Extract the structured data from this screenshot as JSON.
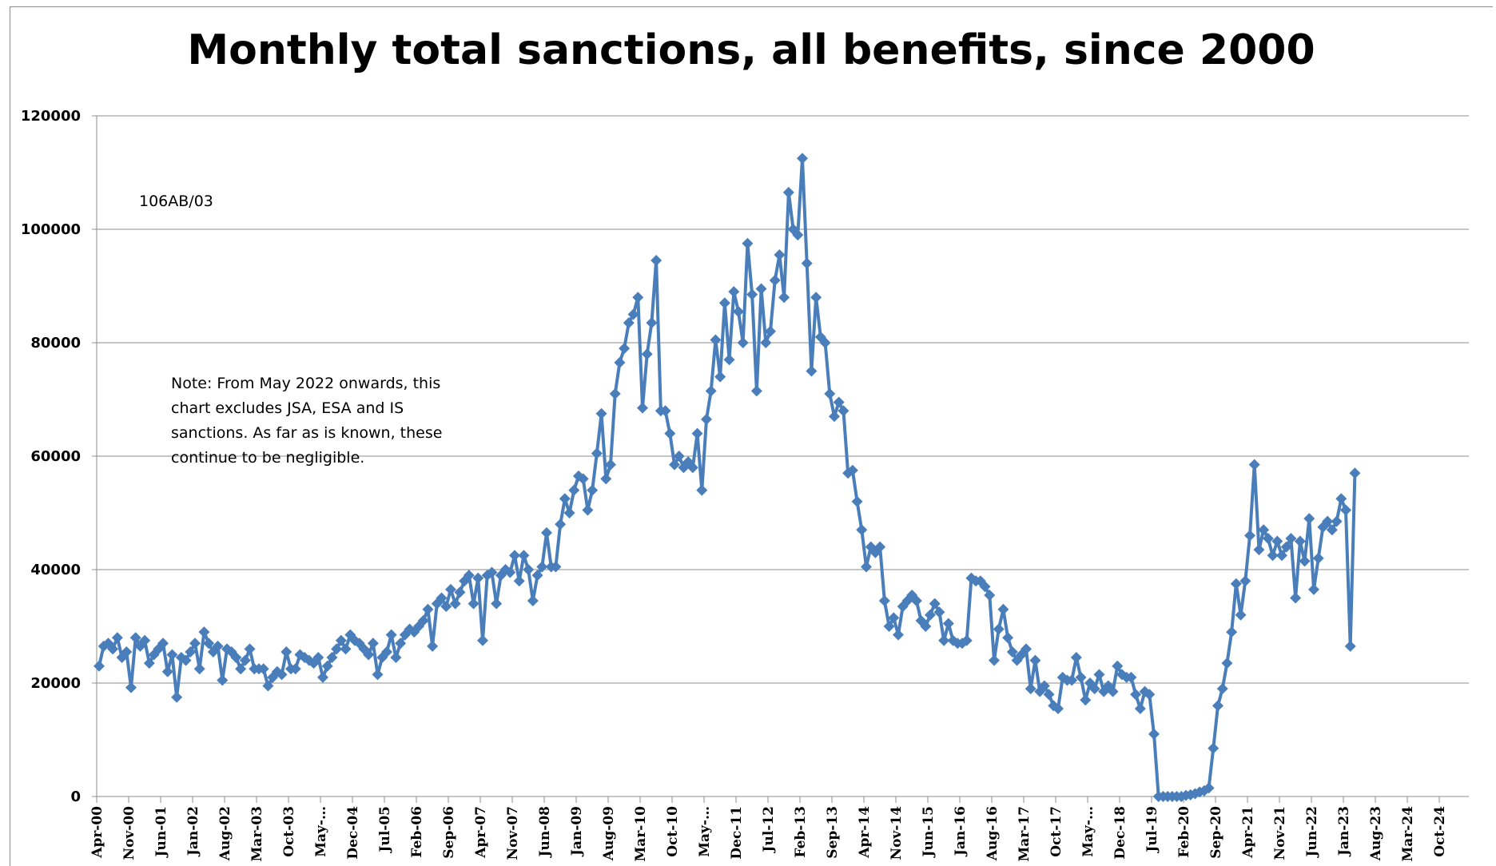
{
  "chart_data": {
    "type": "line",
    "title": "Monthly total sanctions, all benefits, since 2000",
    "xlabel": "",
    "ylabel": "",
    "ylim": [
      0,
      120000
    ],
    "yticks": [
      "0",
      "20000",
      "40000",
      "60000",
      "80000",
      "100000",
      "120000"
    ],
    "xticks": [
      "Apr-00",
      "Nov-00",
      "Jun-01",
      "Jan-02",
      "Aug-02",
      "Mar-03",
      "Oct-03",
      "May-…",
      "Dec-04",
      "Jul-05",
      "Feb-06",
      "Sep-06",
      "Apr-07",
      "Nov-07",
      "Jun-08",
      "Jan-09",
      "Aug-09",
      "Mar-10",
      "Oct-10",
      "May-…",
      "Dec-11",
      "Jul-12",
      "Feb-13",
      "Sep-13",
      "Apr-14",
      "Nov-14",
      "Jun-15",
      "Jan-16",
      "Aug-16",
      "Mar-17",
      "Oct-17",
      "May-…",
      "Dec-18",
      "Jul-19",
      "Feb-20",
      "Sep-20",
      "Apr-21",
      "Nov-21",
      "Jun-22",
      "Jan-23",
      "Aug-23",
      "Mar-24",
      "Oct-24"
    ],
    "x_start": "Apr-00",
    "x_interval": "monthly",
    "grid": true,
    "legend": "none",
    "series_color": "#4a7ebb",
    "annotations": {
      "code": "106AB/03",
      "note_lines": [
        "Note: From May 2022 onwards, this",
        "chart excludes JSA, ESA and IS",
        "sanctions. As far as is known, these",
        "continue to be negligible."
      ]
    },
    "values": [
      23000,
      26500,
      27000,
      26000,
      28000,
      24500,
      25500,
      19200,
      28000,
      26500,
      27500,
      23500,
      25000,
      26000,
      27000,
      22000,
      25000,
      17500,
      24500,
      24000,
      25500,
      27000,
      22500,
      29000,
      27000,
      25500,
      26500,
      20500,
      26000,
      25500,
      24500,
      22500,
      24000,
      26000,
      22500,
      22500,
      22500,
      19500,
      21000,
      22000,
      21500,
      25500,
      22500,
      22500,
      25000,
      24500,
      24000,
      23500,
      24500,
      21000,
      23000,
      24500,
      26000,
      27500,
      26000,
      28500,
      27500,
      27000,
      26000,
      25000,
      27000,
      21500,
      24500,
      25500,
      28500,
      24500,
      27000,
      28500,
      29500,
      29000,
      30000,
      31000,
      33000,
      26500,
      34000,
      35000,
      33500,
      36500,
      34000,
      36000,
      38000,
      39000,
      34000,
      38500,
      27500,
      39000,
      39500,
      34000,
      39000,
      40000,
      39500,
      42500,
      38000,
      42500,
      40000,
      34500,
      39000,
      40500,
      46500,
      40500,
      40500,
      48000,
      52500,
      50000,
      54000,
      56500,
      56000,
      50500,
      54000,
      60500,
      67500,
      56000,
      58500,
      71000,
      76500,
      79000,
      83500,
      85000,
      88000,
      68500,
      78000,
      83500,
      94500,
      68000,
      68000,
      64000,
      58500,
      60000,
      58000,
      59000,
      58000,
      64000,
      54000,
      66500,
      71500,
      80500,
      74000,
      87000,
      77000,
      89000,
      85500,
      80000,
      97500,
      88500,
      71500,
      89500,
      80000,
      82000,
      91000,
      95500,
      88000,
      106500,
      100000,
      99000,
      112500,
      94000,
      75000,
      88000,
      81000,
      80000,
      71000,
      67000,
      69500,
      68000,
      57000,
      57500,
      52000,
      47000,
      40500,
      44000,
      43000,
      44000,
      34500,
      30000,
      31500,
      28500,
      33500,
      34500,
      35500,
      34500,
      31000,
      30000,
      32000,
      34000,
      32500,
      27500,
      30500,
      27500,
      27000,
      27000,
      27500,
      38500,
      38000,
      38000,
      37000,
      35500,
      24000,
      29500,
      33000,
      28000,
      25500,
      24000,
      25000,
      26000,
      19000,
      24000,
      18500,
      19500,
      18000,
      16000,
      15500,
      21000,
      20500,
      20500,
      24500,
      21000,
      17000,
      20000,
      19000,
      21500,
      18500,
      19500,
      18500,
      23000,
      21500,
      21000,
      21000,
      18000,
      15500,
      18500,
      18000,
      11000,
      0,
      0,
      0,
      0,
      0,
      0,
      200,
      300,
      500,
      800,
      1000,
      1500,
      8500,
      16000,
      19000,
      23500,
      29000,
      37500,
      32000,
      38000,
      46000,
      58500,
      43500,
      47000,
      45500,
      42500,
      45000,
      42500,
      44000,
      45500,
      35000,
      45000,
      41500,
      49000,
      36500,
      42000,
      47500,
      48500,
      47000,
      48500,
      52500,
      50500,
      26500,
      57000
    ]
  }
}
